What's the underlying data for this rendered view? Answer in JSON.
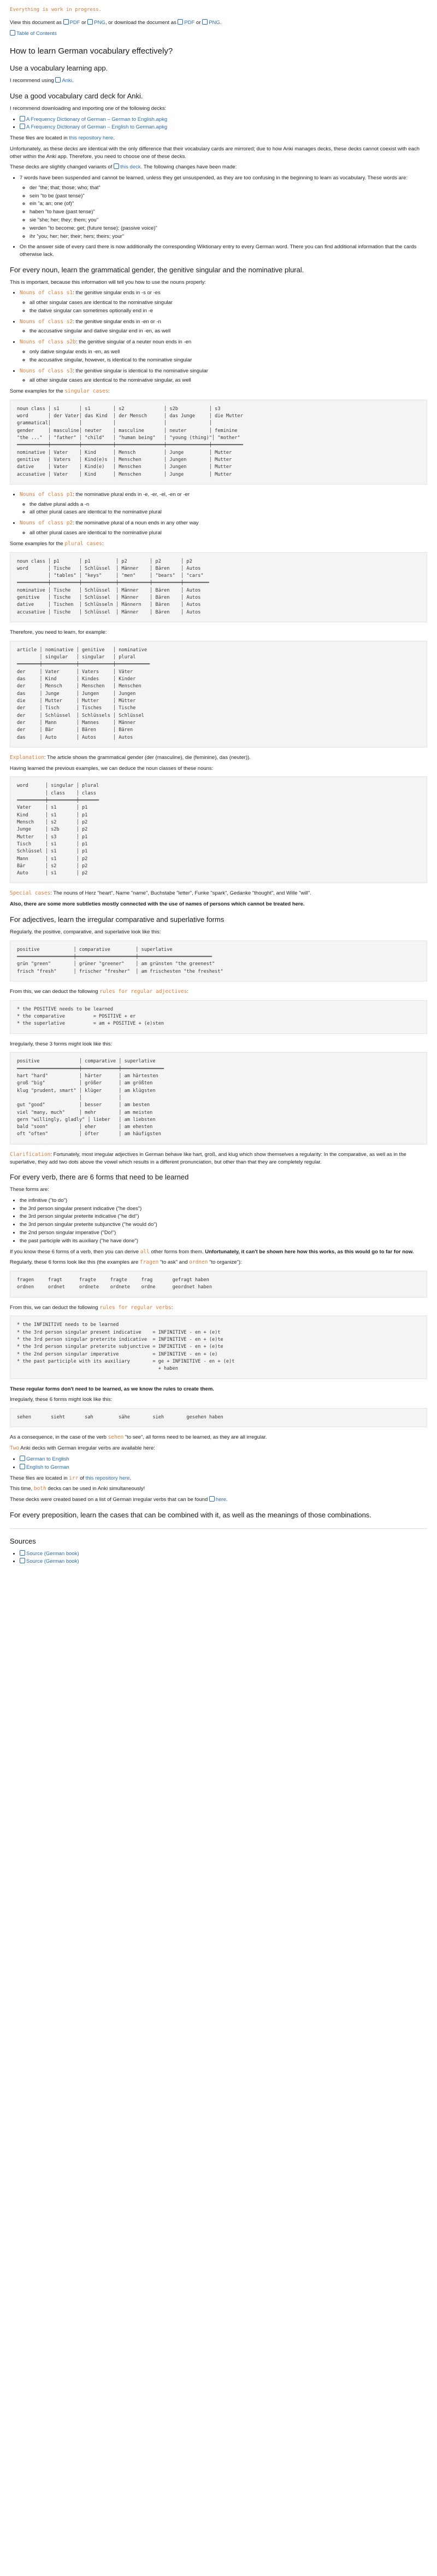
{
  "progress": "Everything is work in progress.",
  "view_line": {
    "prefix": "View this document as ",
    "pdf1": "PDF",
    "or": " or ",
    "png1": "PNG",
    "mid": ", or download the document as ",
    "pdf2": "PDF",
    "or2": " or ",
    "png2": "PNG",
    "end": "."
  },
  "toc_label": "Table of Contents",
  "title": "How to learn German vocabulary effectively?",
  "s1": {
    "heading": "Use a vocabulary learning app.",
    "text_pre": "I recommend using ",
    "anki": "Anki",
    "text_post": "."
  },
  "s2": {
    "heading": "Use a good vocabulary card deck for Anki.",
    "intro": "I recommend downloading and importing one of the following decks:",
    "decks": [
      "A Frequency Dictionary of German – German to English.apkg",
      "A Frequency Dictionary of German – English to German.apkg"
    ],
    "located_pre": "These files are located in ",
    "located_link": "this repository here",
    "located_post": ".",
    "para1": "Unfortunately, as these decks are identical with the only difference that their vocabulary cards are mirrored; due to how Anki manages decks, these decks cannot coexist with each other within the Anki app. Therefore, you need to choose one of these decks.",
    "para2_pre": "These decks are slightly changed variants of ",
    "para2_link": "this deck",
    "para2_post": ". The following changes have been made:",
    "changes_intro": "7 words have been suspended and cannot be learned, unless they get unsuspended, as they are too confusing in the beginning to learn as vocabulary. These words are:",
    "words": [
      "der \"the; that; those; who; that\"",
      "sein \"to be (past tense)\"",
      "ein \"a; an; one (of)\"",
      "haben \"to have (past tense)\"",
      "sie \"she; her; they; them; you\"",
      "werden \"to become; get; (future tense); (passive voice)\"",
      "ihr \"you; her; her; their; hers; theirs; your\""
    ],
    "answer_note": "On the answer side of every card there is now additionally the corresponding Wiktionary entry to every German word. There you can find additional information that the cards otherwise lack."
  },
  "s3": {
    "heading": "For every noun, learn the grammatical gender, the genitive singular and the nominative plural.",
    "intro": "This is important, because this information will tell you how to use the nouns properly:",
    "rules": [
      {
        "cls": "Nouns of class s1",
        "txt": ": the genitive singular ends in -s or -es",
        "sub": [
          "all other singular cases are identical to the nominative singular",
          "the dative singular can sometimes optionally end in -e"
        ]
      },
      {
        "cls": "Nouns of class s2",
        "txt": ": the genitive singular ends in -en or -n",
        "sub": [
          "the accusative singular and dative singular end in -en, as well"
        ]
      },
      {
        "cls": "Nouns of class s2b",
        "txt": ": the genitive singular of a neuter noun ends in -en",
        "sub": [
          "only dative singular ends in -en, as well",
          "the accusative singular, however, is identical to the nominative singular"
        ]
      },
      {
        "cls": "Nouns of class s3",
        "txt": ": the genitive singular is identical to the nominative singular",
        "sub": [
          "all other singular cases are identical to the nominative singular, as well"
        ]
      }
    ],
    "examples_pre": "Some examples for the ",
    "examples_kw": "singular cases",
    "examples_post": ":",
    "table1": "noun class │ s1       │ s1        │ s2              │ s2b           │ s3\nword       │ der Vater│ das Kind  │ der Mensch      │ das Junge     │ die Mutter\ngrammatical│          │           │                 │               │\ngender     │ masculine│ neuter    │ masculine       │ neuter        │ feminine\n\"the ...\"  │ \"father\" │ \"child\"   │ \"human being\"   │ \"young (thing)\"│ \"mother\"\n═══════════╪══════════╪═══════════╪═════════════════╪═══════════════╪═══════════\nnominative │ Vater    │ Kind      │ Mensch          │ Junge         │ Mutter\ngenitive   │ Vaters   │ Kind(e)s  │ Menschen        │ Jungen        │ Mutter\ndative     │ Vater    │ Kind(e)   │ Menschen        │ Jungen        │ Mutter\naccusative │ Vater    │ Kind      │ Menschen        │ Junge         │ Mutter",
    "plural_rules": [
      {
        "cls": "Nouns of class p1",
        "txt": ": the nominative plural ends in -e, -er, -el, -en or -er",
        "sub": [
          "the dative plural adds a -n",
          "all other plural cases are identical to the nominative plural"
        ]
      },
      {
        "cls": "Nouns of class p2",
        "txt": ": the nominative plural of a noun ends in any other way",
        "sub": [
          "all other plural cases are identical to the nominative plural"
        ]
      }
    ],
    "plural_pre": "Some examples for the ",
    "plural_kw": "plural cases",
    "plural_post": ":",
    "table2": "noun class │ p1       │ p1         │ p2        │ p2       │ p2\nword       │ Tische   │ Schlüssel  │ Männer    │ Bären    │ Autos\n           │ \"tables\" │ \"keys\"     │ \"men\"     │ \"bears\"  │ \"cars\"\n═══════════╪══════════╪════════════╪═══════════╪══════════╪═════════\nnominative │ Tische   │ Schlüssel  │ Männer    │ Bären    │ Autos\ngenitive   │ Tische   │ Schlüssel  │ Männer    │ Bären    │ Autos\ndative     │ Tischen  │ Schlüsseln │ Männern   │ Bären    │ Autos\naccusative │ Tische   │ Schlüssel  │ Männer    │ Bären    │ Autos",
    "therefore": "Therefore, you need to learn, for example:",
    "table3": "article │ nominative │ genitive   │ nominative\n        │ singular   │ singular   │ plural\n════════╪════════════╪════════════╪════════════\nder     │ Vater      │ Vaters     │ Väter\ndas     │ Kind       │ Kindes     │ Kinder\nder     │ Mensch     │ Menschen   │ Menschen\ndas     │ Junge      │ Jungen     │ Jungen\ndie     │ Mutter     │ Mutter     │ Mütter\nder     │ Tisch      │ Tisches    │ Tische\nder     │ Schlüssel  │ Schlüssels │ Schlüssel\nder     │ Mann       │ Mannes     │ Männer\nder     │ Bär        │ Bären      │ Bären\ndas     │ Auto       │ Autos      │ Autos",
    "explanation_kw": "Explanation",
    "explanation": ": The article shows the grammatical gender (der (masculine), die (feminine), das (neuter)).",
    "deduce": "Having learned the previous examples, we can deduce the noun classes of these nouns:",
    "table4": "word      │ singular │ plural\n          │ class    │ class\n══════════╪══════════╪═══════\nVater     │ s1       │ p1\nKind      │ s1       │ p1\nMensch    │ s2       │ p2\nJunge     │ s2b      │ p2\nMutter    │ s3       │ p1\nTisch     │ s1       │ p1\nSchlüssel │ s1       │ p1\nMann      │ s1       │ p2\nBär       │ s2       │ p2\nAuto      │ s1       │ p2",
    "special_kw": "Special cases",
    "special": ": The nouns of Herz \"heart\", Name \"name\", Buchstabe \"letter\", Funke \"spark\", Gedanke \"thought\", and Wille \"will\".",
    "subtle": "Also, there are some more subtleties mostly connected with the use of names of persons which cannot be treated here."
  },
  "s4": {
    "heading": "For adjectives, learn the irregular comparative and superlative forms",
    "intro": "Regularly, the positive, comparative, and superlative look like this:",
    "table1": "positive            │ comparative         │ superlative\n════════════════════╪═════════════════════╪══════════════════════════\ngrün \"green\"        │ grüner \"greener\"    │ am grünsten \"the greenest\"\nfrisch \"fresh\"      │ frischer \"fresher\"  │ am frischesten \"the freshest\"",
    "deduct_pre": "From this, we can deduct the following ",
    "deduct_kw": "rules for regular adjectives",
    "deduct_post": ":",
    "rules": "* the POSITIVE needs to be learned\n* the comparative          = POSITIVE + er\n* the superlative          = am + POSITIVE + (e)sten",
    "irregular": "Irregularly, these 3 forms might look like this:",
    "table2": "positive              │ comparative │ superlative\n══════════════════════╪═════════════╪═══════════════\nhart \"hard\"           │ härter      │ am härtesten\ngroß \"big\"            │ größer      │ am größten\nklug \"prudent, smart\" │ klüger      │ am klügsten\n                      │             │\ngut \"good\"            │ besser      │ am besten\nviel \"many, much\"     │ mehr        │ am meisten\ngern \"willingly, gladly\" │ lieber   │ am liebsten\nbald \"soon\"           │ eher        │ am ehesten\noft \"often\"           │ öfter       │ am häufigsten",
    "clarification_kw": "Clarification",
    "clarification": ": Fortunately, most irregular adjectives in German behave like hart, groß, and klug which show themselves a regularity: In the comparative, as well as in the superlative, they add two dots above the vowel which results in a different pronunciation, but other than that they are completely regular."
  },
  "s5": {
    "heading": "For every verb, there are 6 forms that need to be learned",
    "intro": "These forms are:",
    "forms": [
      "the infinitive (\"to do\")",
      "the 3rd person singular present indicative (\"he does\")",
      "the 3rd person singular preterite indicative (\"he did\")",
      "the 3rd person singular preterite subjunctive (\"he would do\")",
      "the 2nd person singular imperative (\"Do!\")",
      "the past participle with its auxiliary (\"he have done\")"
    ],
    "know_pre": "If you know these 6 forms of a verb, then you can derive ",
    "know_kw": "all",
    "know_mid": " other forms from them. ",
    "know_bold": "Unfortunately, it can't be shown here how this works, as this would go to far for now.",
    "regular_pre": "Regularly, these 6 forms look like this (the examples are ",
    "regular_ex1": "fragen",
    "regular_mid": " \"to ask\" and ",
    "regular_ex2": "ordnen",
    "regular_post": " \"to organize\"):",
    "table1": "fragen     fragt      fragte     fragte     frag       gefragt haben\nordnen     ordnet     ordnete    ordnete    ordne      geordnet haben",
    "deduct_pre": "From this, we can deduct the following ",
    "deduct_kw": "rules for regular verbs",
    "deduct_post": ":",
    "rules": "* the INFINITIVE needs to be learned\n* the 3rd person singular present indicative    = INFINITIVE - en + (e)t\n* the 3rd person singular preterite indicative  = INFINITIVE - en + (e)te\n* the 3rd person singular preterite subjunctive = INFINITIVE - en + (e)te\n* the 2nd person singular imperative            = INFINITIVE - en + (e)\n* the past participle with its auxiliary        = ge + INFINITIVE - en + (e)t\n                                                  + haben",
    "bold_note": "These regular forms don't need to be learned, as we know the rules to create them.",
    "irregular": "Irregularly, these 6 forms might look like this:",
    "table2": "sehen       sieht       sah         sähe        sieh        gesehen haben",
    "consequence_pre": "As a consequence, in the case of the verb ",
    "consequence_kw": "sehen",
    "consequence_post": " \"to see\", all forms need to be learned, as they are all irregular.",
    "two_pre": "Two",
    "two_post": " Anki decks with German irregular verbs are available here:",
    "decks": [
      "German to English",
      "English to German"
    ],
    "located_pre": "These files are located in ",
    "located_kw": "irr",
    "located_mid": " of ",
    "located_link": "this repository here",
    "located_post": ".",
    "time_pre": "This time, ",
    "time_kw": "both",
    "time_post": " decks can be used in Anki simultaneously!",
    "created_pre": "These decks were created based on a list of German irregular verbs that can be found ",
    "created_link": "here",
    "created_post": "."
  },
  "s6": {
    "heading": "For every preposition, learn the cases that can be combined with it, as well as the meanings of those combinations."
  },
  "sources": {
    "heading": "Sources",
    "items": [
      "Source (German book)",
      "Source (German book)"
    ]
  }
}
